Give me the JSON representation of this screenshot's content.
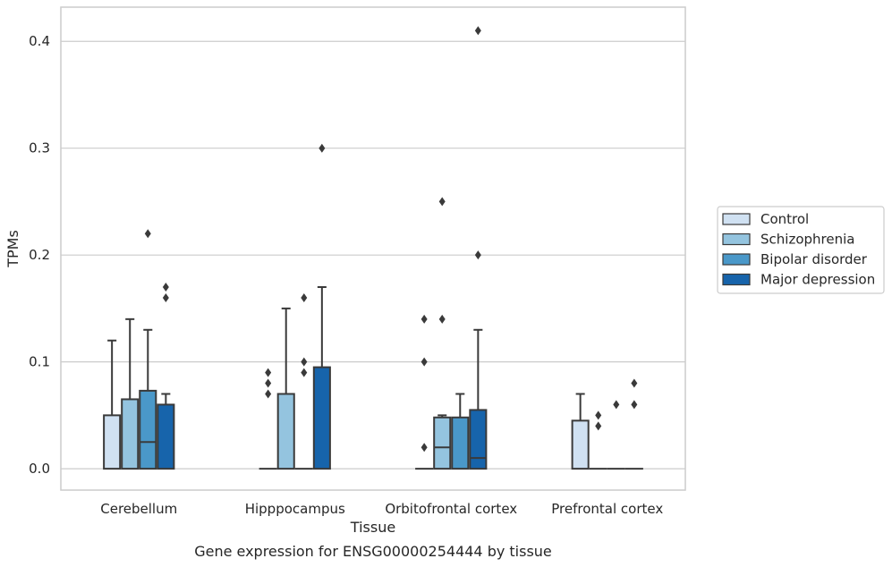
{
  "chart_data": {
    "type": "box",
    "title": "",
    "caption": "Gene expression for ENSG00000254444 by tissue",
    "xlabel": "Tissue",
    "ylabel": "TPMs",
    "ylim": [
      -0.02,
      0.432
    ],
    "yticks": [
      0.0,
      0.1,
      0.2,
      0.3,
      0.4
    ],
    "ytick_labels": [
      "0.0",
      "0.1",
      "0.2",
      "0.3",
      "0.4"
    ],
    "grid": "horizontal",
    "legend_placement": "right",
    "categories": [
      "Cerebellum",
      "Hipppocampus",
      "Orbitofrontal cortex",
      "Prefrontal cortex"
    ],
    "series": [
      {
        "name": "Control",
        "color": "#d0e1f2",
        "boxes": [
          {
            "q1": 0.0,
            "median": 0.0,
            "q3": 0.05,
            "whisker_low": 0.0,
            "whisker_high": 0.12,
            "outliers": []
          },
          {
            "q1": 0.0,
            "median": 0.0,
            "q3": 0.0,
            "whisker_low": 0.0,
            "whisker_high": 0.0,
            "outliers": [
              0.07,
              0.08,
              0.09
            ]
          },
          {
            "q1": 0.0,
            "median": 0.0,
            "q3": 0.0,
            "whisker_low": 0.0,
            "whisker_high": 0.0,
            "outliers": [
              0.02,
              0.1,
              0.14
            ]
          },
          {
            "q1": 0.0,
            "median": 0.0,
            "q3": 0.045,
            "whisker_low": 0.0,
            "whisker_high": 0.07,
            "outliers": []
          }
        ]
      },
      {
        "name": "Schizophrenia",
        "color": "#94c4df",
        "boxes": [
          {
            "q1": 0.0,
            "median": 0.0,
            "q3": 0.065,
            "whisker_low": 0.0,
            "whisker_high": 0.14,
            "outliers": []
          },
          {
            "q1": 0.0,
            "median": 0.0,
            "q3": 0.07,
            "whisker_low": 0.0,
            "whisker_high": 0.15,
            "outliers": []
          },
          {
            "q1": 0.0,
            "median": 0.02,
            "q3": 0.048,
            "whisker_low": 0.0,
            "whisker_high": 0.05,
            "outliers": [
              0.14,
              0.25
            ]
          },
          {
            "q1": 0.0,
            "median": 0.0,
            "q3": 0.0,
            "whisker_low": 0.0,
            "whisker_high": 0.0,
            "outliers": [
              0.04,
              0.05
            ]
          }
        ]
      },
      {
        "name": "Bipolar disorder",
        "color": "#4a98c9",
        "boxes": [
          {
            "q1": 0.0,
            "median": 0.025,
            "q3": 0.073,
            "whisker_low": 0.0,
            "whisker_high": 0.13,
            "outliers": [
              0.22
            ]
          },
          {
            "q1": 0.0,
            "median": 0.0,
            "q3": 0.0,
            "whisker_low": 0.0,
            "whisker_high": 0.0,
            "outliers": [
              0.09,
              0.1,
              0.16
            ]
          },
          {
            "q1": 0.0,
            "median": 0.0,
            "q3": 0.048,
            "whisker_low": 0.0,
            "whisker_high": 0.07,
            "outliers": []
          },
          {
            "q1": 0.0,
            "median": 0.0,
            "q3": 0.0,
            "whisker_low": 0.0,
            "whisker_high": 0.0,
            "outliers": [
              0.06
            ]
          }
        ]
      },
      {
        "name": "Major depression",
        "color": "#1764ab",
        "boxes": [
          {
            "q1": 0.0,
            "median": 0.0,
            "q3": 0.06,
            "whisker_low": 0.0,
            "whisker_high": 0.07,
            "outliers": [
              0.16,
              0.17
            ]
          },
          {
            "q1": 0.0,
            "median": 0.0,
            "q3": 0.095,
            "whisker_low": 0.0,
            "whisker_high": 0.17,
            "outliers": [
              0.3
            ]
          },
          {
            "q1": 0.0,
            "median": 0.01,
            "q3": 0.055,
            "whisker_low": 0.0,
            "whisker_high": 0.13,
            "outliers": [
              0.2,
              0.41
            ]
          },
          {
            "q1": 0.0,
            "median": 0.0,
            "q3": 0.0,
            "whisker_low": 0.0,
            "whisker_high": 0.0,
            "outliers": [
              0.06,
              0.08
            ]
          }
        ]
      }
    ]
  }
}
